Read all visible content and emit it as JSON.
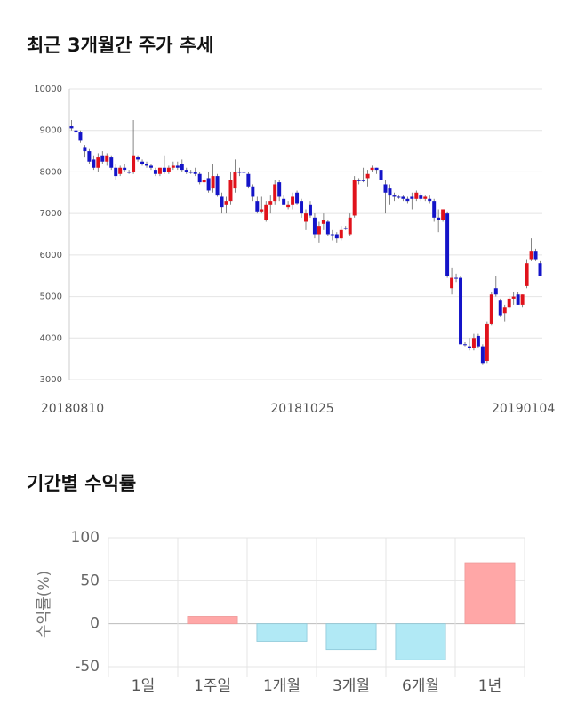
{
  "chart_data": [
    {
      "type": "candlestick",
      "title": "최근 3개월간 주가 추세",
      "categories": [
        "20180810",
        null,
        null,
        null,
        null,
        null,
        null,
        null,
        null,
        null,
        null,
        null,
        null,
        null,
        null,
        null,
        null,
        null,
        null,
        null,
        null,
        null,
        null,
        null,
        null,
        null,
        null,
        null,
        null,
        null,
        null,
        null,
        null,
        null,
        null,
        null,
        null,
        null,
        null,
        null,
        null,
        null,
        null,
        null,
        null,
        null,
        null,
        null,
        null,
        null,
        null,
        null,
        "20181025",
        null,
        null,
        null,
        null,
        null,
        null,
        null,
        null,
        null,
        null,
        null,
        null,
        null,
        null,
        null,
        null,
        null,
        null,
        null,
        null,
        null,
        null,
        null,
        null,
        null,
        null,
        null,
        null,
        null,
        null,
        null,
        null,
        null,
        null,
        null,
        null,
        null,
        null,
        null,
        null,
        null,
        null,
        null,
        null,
        null,
        null,
        null,
        null,
        null,
        "20190104",
        null,
        null,
        null,
        null
      ],
      "open": [
        9100,
        9000,
        8950,
        8600,
        8500,
        8300,
        8100,
        8400,
        8250,
        8350,
        8100,
        7950,
        8100,
        8000,
        8000,
        8350,
        8250,
        8200,
        8150,
        8050,
        7950,
        8100,
        8000,
        8100,
        8150,
        8200,
        8050,
        8000,
        8000,
        7950,
        7750,
        7850,
        7600,
        7900,
        7400,
        7200,
        7300,
        7600,
        8000,
        8000,
        7950,
        7650,
        7300,
        7050,
        6850,
        7200,
        7300,
        7750,
        7350,
        7150,
        7200,
        7500,
        7300,
        6800,
        7200,
        6900,
        6500,
        6750,
        6800,
        6500,
        6500,
        6400,
        6650,
        6500,
        6950,
        7800,
        7800,
        7850,
        8050,
        8100,
        8050,
        7700,
        7600,
        7450,
        7400,
        7400,
        7350,
        7400,
        7350,
        7450,
        7350,
        7350,
        7300,
        6900,
        6850,
        7000,
        5200,
        5450,
        5450,
        3850,
        3800,
        3750,
        4050,
        3800,
        3450,
        4350,
        5200,
        4900,
        4600,
        4750,
        4950,
        5050,
        4800,
        5250,
        5900,
        6100,
        5800
      ],
      "high": [
        9250,
        9450,
        9000,
        8650,
        8550,
        8400,
        8450,
        8500,
        8450,
        8400,
        8200,
        8150,
        8200,
        8050,
        9250,
        8400,
        8300,
        8250,
        8200,
        8100,
        8100,
        8400,
        8150,
        8250,
        8250,
        8300,
        8100,
        8050,
        8100,
        8000,
        7850,
        8000,
        8200,
        7950,
        7500,
        7400,
        8000,
        8300,
        8100,
        8100,
        8000,
        7700,
        7400,
        7400,
        7300,
        7450,
        7800,
        7800,
        7450,
        7300,
        7500,
        7550,
        7350,
        7100,
        7300,
        7000,
        6800,
        7000,
        6850,
        6600,
        6550,
        6700,
        6700,
        7000,
        7900,
        7850,
        8100,
        8050,
        8150,
        8100,
        8100,
        7800,
        7700,
        7500,
        7450,
        7450,
        7400,
        7500,
        7550,
        7500,
        7450,
        7450,
        7350,
        7100,
        7100,
        7050,
        5700,
        5550,
        5500,
        3900,
        4000,
        4100,
        4100,
        3850,
        4400,
        5100,
        5500,
        4950,
        4800,
        5000,
        5100,
        5100,
        5050,
        5900,
        6400,
        6150,
        5850
      ],
      "low": [
        9000,
        8900,
        8700,
        8350,
        8200,
        8050,
        8000,
        8200,
        8150,
        8050,
        7800,
        7900,
        8000,
        7950,
        7950,
        8250,
        8150,
        8100,
        8050,
        7900,
        7900,
        7950,
        7950,
        8050,
        8050,
        8000,
        7950,
        7950,
        7900,
        7700,
        7650,
        7500,
        7500,
        7400,
        7000,
        7000,
        7200,
        7500,
        7900,
        7950,
        7600,
        7300,
        7000,
        7000,
        6800,
        7000,
        7200,
        7300,
        7200,
        7100,
        7100,
        7200,
        6900,
        6600,
        6900,
        6400,
        6300,
        6600,
        6450,
        6350,
        6300,
        6350,
        6600,
        6450,
        6900,
        7700,
        7750,
        7650,
        8000,
        7950,
        7600,
        7000,
        7200,
        7300,
        7350,
        7300,
        7250,
        7100,
        7300,
        7300,
        7300,
        7250,
        6800,
        6550,
        6800,
        5450,
        5050,
        5350,
        3850,
        3800,
        3700,
        3700,
        3750,
        3350,
        3400,
        4300,
        5000,
        4500,
        4400,
        4700,
        4800,
        4800,
        4750,
        5200,
        5850,
        5850,
        5500
      ],
      "close": [
        9050,
        8950,
        8750,
        8500,
        8250,
        8100,
        8350,
        8250,
        8400,
        8100,
        7900,
        8100,
        8050,
        8000,
        8400,
        8300,
        8200,
        8150,
        8100,
        7950,
        8100,
        8000,
        8100,
        8150,
        8100,
        8050,
        8000,
        8000,
        7950,
        7750,
        7800,
        7550,
        7900,
        7450,
        7150,
        7300,
        7800,
        8000,
        8000,
        8000,
        7650,
        7400,
        7050,
        7100,
        7200,
        7300,
        7700,
        7400,
        7200,
        7200,
        7400,
        7250,
        7000,
        7000,
        6950,
        6500,
        6700,
        6850,
        6500,
        6500,
        6400,
        6600,
        6650,
        6900,
        7800,
        7800,
        7800,
        7950,
        8100,
        8050,
        7800,
        7500,
        7450,
        7400,
        7400,
        7350,
        7300,
        7350,
        7500,
        7350,
        7400,
        7300,
        6900,
        6850,
        7100,
        5500,
        5450,
        5450,
        3850,
        3850,
        3750,
        4000,
        3800,
        3400,
        4350,
        5050,
        5050,
        4550,
        4750,
        4950,
        5000,
        4800,
        5050,
        5800,
        6100,
        5900,
        5500
      ],
      "up_color": "#e0121b",
      "down_color": "#1414c8",
      "ylim": [
        3000,
        10000
      ],
      "yticks": [
        3000,
        4000,
        5000,
        6000,
        7000,
        8000,
        9000,
        10000
      ],
      "grid": true
    },
    {
      "type": "bar",
      "title": "기간별 수익률",
      "y_label": "수익률(%)",
      "categories": [
        "1일",
        "1주일",
        "1개월",
        "3개월",
        "6개월",
        "1년"
      ],
      "values": [
        0,
        8.5,
        -20.5,
        -30,
        -42,
        71
      ],
      "positive_color": "#ffa7a7",
      "negative_color": "#b1e9f5",
      "ylim": [
        -50,
        100
      ],
      "yticks": [
        100,
        50,
        0,
        -50
      ],
      "grid": true
    }
  ]
}
